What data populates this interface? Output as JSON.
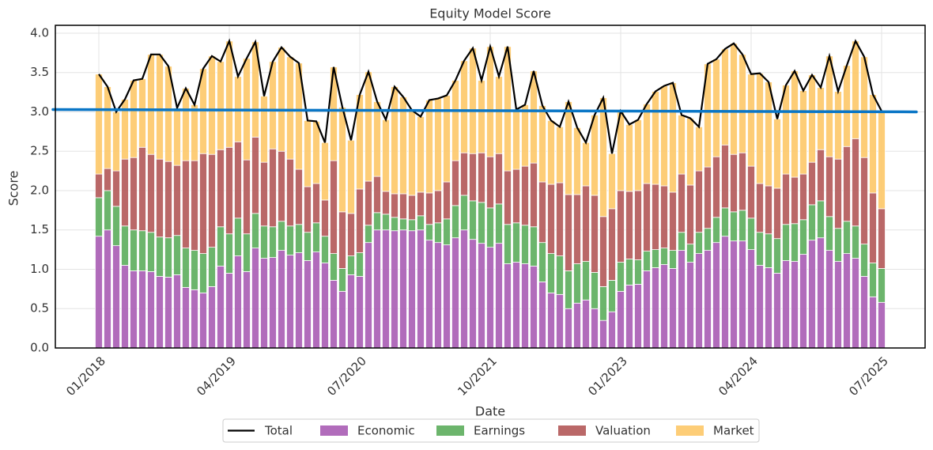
{
  "chart_data": {
    "type": "bar",
    "stacked": true,
    "title": "Equity Model Score",
    "x_label": "Date",
    "y_label": "Score",
    "categories": [
      "01/2018",
      null,
      null,
      null,
      null,
      null,
      null,
      null,
      null,
      null,
      null,
      null,
      null,
      null,
      null,
      "04/2019",
      null,
      null,
      null,
      null,
      null,
      null,
      null,
      null,
      null,
      null,
      null,
      null,
      null,
      null,
      "07/2020",
      null,
      null,
      null,
      null,
      null,
      null,
      null,
      null,
      null,
      null,
      null,
      null,
      null,
      null,
      "10/2021",
      null,
      null,
      null,
      null,
      null,
      null,
      null,
      null,
      null,
      null,
      null,
      null,
      null,
      null,
      "01/2023",
      null,
      null,
      null,
      null,
      null,
      null,
      null,
      null,
      null,
      null,
      null,
      null,
      null,
      null,
      "04/2024",
      null,
      null,
      null,
      null,
      null,
      null,
      null,
      null,
      null,
      null,
      null,
      null,
      null,
      null,
      "07/2025"
    ],
    "xlim": [
      -5,
      95
    ],
    "ylim": [
      0,
      4.1
    ],
    "yticks": [
      {
        "value": 0,
        "label": "0.0"
      },
      {
        "value": 0.5,
        "label": "0.5"
      },
      {
        "value": 1,
        "label": "1.0"
      },
      {
        "value": 1.5,
        "label": "1.5"
      },
      {
        "value": 2,
        "label": "2.0"
      },
      {
        "value": 2.5,
        "label": "2.5"
      },
      {
        "value": 3,
        "label": "3.0"
      },
      {
        "value": 3.5,
        "label": "3.5"
      },
      {
        "value": 4,
        "label": "4.0"
      }
    ],
    "grid": true,
    "legend": "bottom",
    "line": {
      "name": "Total",
      "color": "#000000",
      "values": [
        3.48,
        3.32,
        3.0,
        3.16,
        3.4,
        3.42,
        3.73,
        3.73,
        3.58,
        3.05,
        3.3,
        3.09,
        3.55,
        3.71,
        3.64,
        3.9,
        3.45,
        3.68,
        3.89,
        3.2,
        3.64,
        3.82,
        3.7,
        3.62,
        2.89,
        2.88,
        2.61,
        3.57,
        3.06,
        2.64,
        3.22,
        3.51,
        3.13,
        2.9,
        3.32,
        3.19,
        3.02,
        2.94,
        3.15,
        3.17,
        3.21,
        3.4,
        3.65,
        3.81,
        3.4,
        3.83,
        3.45,
        3.83,
        3.03,
        3.09,
        3.52,
        3.08,
        2.89,
        2.81,
        3.13,
        2.8,
        2.61,
        2.96,
        3.18,
        2.47,
        3.01,
        2.84,
        2.9,
        3.1,
        3.26,
        3.33,
        3.37,
        2.96,
        2.92,
        2.81,
        3.61,
        3.67,
        3.8,
        3.87,
        3.73,
        3.48,
        3.49,
        3.38,
        2.91,
        3.34,
        3.52,
        3.27,
        3.47,
        3.31,
        3.71,
        3.26,
        3.59,
        3.9,
        3.7,
        3.22,
        3.01
      ]
    },
    "trend": {
      "color": "#0a76c6",
      "x": [
        -5,
        94
      ],
      "values": [
        3.03,
        3.0
      ]
    },
    "series": [
      {
        "name": "Economic",
        "color": "#a85cb4",
        "values": [
          1.42,
          1.5,
          1.3,
          1.05,
          0.98,
          0.98,
          0.97,
          0.91,
          0.9,
          0.93,
          0.77,
          0.74,
          0.7,
          0.78,
          1.04,
          0.95,
          1.17,
          0.97,
          1.27,
          1.14,
          1.15,
          1.24,
          1.18,
          1.21,
          1.11,
          1.22,
          1.08,
          0.86,
          0.72,
          0.93,
          0.91,
          1.34,
          1.5,
          1.5,
          1.49,
          1.5,
          1.49,
          1.5,
          1.37,
          1.34,
          1.31,
          1.4,
          1.5,
          1.38,
          1.33,
          1.28,
          1.33,
          1.07,
          1.09,
          1.07,
          1.04,
          0.84,
          0.7,
          0.68,
          0.5,
          0.57,
          0.61,
          0.5,
          0.35,
          0.46,
          0.72,
          0.8,
          0.81,
          0.98,
          1.02,
          1.06,
          1.01,
          1.24,
          1.09,
          1.2,
          1.24,
          1.34,
          1.42,
          1.36,
          1.36,
          1.25,
          1.05,
          1.02,
          0.95,
          1.11,
          1.1,
          1.19,
          1.37,
          1.4,
          1.24,
          1.1,
          1.2,
          1.14,
          0.91,
          0.65,
          0.58
        ]
      },
      {
        "name": "Earnings",
        "color": "#5cad5c",
        "values": [
          0.49,
          0.5,
          0.5,
          0.5,
          0.52,
          0.51,
          0.5,
          0.5,
          0.5,
          0.5,
          0.5,
          0.5,
          0.5,
          0.5,
          0.5,
          0.5,
          0.48,
          0.48,
          0.44,
          0.41,
          0.39,
          0.37,
          0.37,
          0.36,
          0.36,
          0.37,
          0.34,
          0.34,
          0.29,
          0.24,
          0.3,
          0.22,
          0.22,
          0.2,
          0.17,
          0.14,
          0.14,
          0.18,
          0.2,
          0.25,
          0.33,
          0.41,
          0.44,
          0.49,
          0.52,
          0.5,
          0.5,
          0.5,
          0.5,
          0.49,
          0.5,
          0.5,
          0.5,
          0.49,
          0.48,
          0.5,
          0.49,
          0.46,
          0.43,
          0.4,
          0.37,
          0.33,
          0.31,
          0.25,
          0.23,
          0.21,
          0.23,
          0.23,
          0.23,
          0.27,
          0.28,
          0.32,
          0.36,
          0.37,
          0.39,
          0.4,
          0.42,
          0.43,
          0.44,
          0.46,
          0.48,
          0.44,
          0.45,
          0.47,
          0.43,
          0.42,
          0.41,
          0.41,
          0.41,
          0.43,
          0.43
        ]
      },
      {
        "name": "Valuation",
        "color": "#b25858",
        "values": [
          0.3,
          0.28,
          0.45,
          0.85,
          0.92,
          1.06,
          0.99,
          0.99,
          0.97,
          0.89,
          1.11,
          1.14,
          1.27,
          1.18,
          0.98,
          1.1,
          0.97,
          0.94,
          0.97,
          0.81,
          0.99,
          0.89,
          0.85,
          0.7,
          0.58,
          0.5,
          0.46,
          1.18,
          0.72,
          0.54,
          0.81,
          0.56,
          0.46,
          0.29,
          0.3,
          0.32,
          0.31,
          0.3,
          0.4,
          0.41,
          0.47,
          0.57,
          0.54,
          0.6,
          0.63,
          0.65,
          0.64,
          0.68,
          0.68,
          0.75,
          0.81,
          0.77,
          0.88,
          0.93,
          0.97,
          0.88,
          0.96,
          0.98,
          0.89,
          0.91,
          0.91,
          0.86,
          0.88,
          0.86,
          0.83,
          0.79,
          0.74,
          0.74,
          0.75,
          0.78,
          0.78,
          0.77,
          0.8,
          0.73,
          0.73,
          0.66,
          0.62,
          0.61,
          0.64,
          0.64,
          0.59,
          0.58,
          0.54,
          0.65,
          0.76,
          0.88,
          0.95,
          1.11,
          1.1,
          0.89,
          0.76
        ]
      },
      {
        "name": "Market",
        "color": "#fdc868",
        "values": [
          1.27,
          1.04,
          0.75,
          0.76,
          0.98,
          0.87,
          1.27,
          1.33,
          1.21,
          0.73,
          0.92,
          0.71,
          1.08,
          1.25,
          1.12,
          1.35,
          0.83,
          1.29,
          1.21,
          0.84,
          1.11,
          1.32,
          1.3,
          1.35,
          0.84,
          0.79,
          0.73,
          1.19,
          1.33,
          0.93,
          1.2,
          1.39,
          0.95,
          0.91,
          1.36,
          1.23,
          1.08,
          0.96,
          1.18,
          1.17,
          1.1,
          1.02,
          1.17,
          1.34,
          0.92,
          1.4,
          0.98,
          1.58,
          0.76,
          0.78,
          1.17,
          0.97,
          0.81,
          0.71,
          1.18,
          0.85,
          0.55,
          1.02,
          1.51,
          0.7,
          1.01,
          0.85,
          0.9,
          1.01,
          1.18,
          1.27,
          1.39,
          0.75,
          0.85,
          0.56,
          1.31,
          1.24,
          1.22,
          1.41,
          1.25,
          1.17,
          1.4,
          1.32,
          0.88,
          1.13,
          1.35,
          1.06,
          1.11,
          0.79,
          1.28,
          0.86,
          1.03,
          1.24,
          1.28,
          1.25,
          1.24
        ]
      }
    ]
  }
}
